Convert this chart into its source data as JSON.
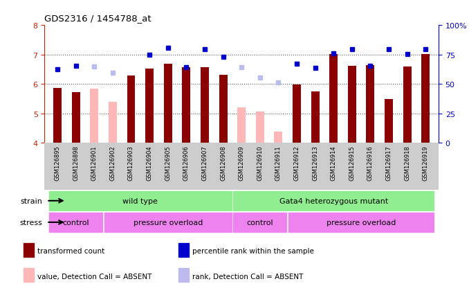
{
  "title": "GDS2316 / 1454788_at",
  "samples": [
    "GSM126895",
    "GSM126898",
    "GSM126901",
    "GSM126902",
    "GSM126903",
    "GSM126904",
    "GSM126905",
    "GSM126906",
    "GSM126907",
    "GSM126908",
    "GSM126909",
    "GSM126910",
    "GSM126911",
    "GSM126912",
    "GSM126913",
    "GSM126914",
    "GSM126915",
    "GSM126916",
    "GSM126917",
    "GSM126918",
    "GSM126919"
  ],
  "bar_values": [
    5.85,
    5.72,
    5.83,
    5.38,
    6.28,
    6.52,
    6.68,
    6.57,
    6.56,
    6.32,
    5.2,
    5.05,
    4.38,
    5.98,
    5.75,
    7.02,
    6.62,
    6.65,
    5.48,
    6.6,
    7.02
  ],
  "bar_absent": [
    false,
    false,
    true,
    true,
    false,
    false,
    false,
    false,
    false,
    false,
    true,
    true,
    true,
    false,
    false,
    false,
    false,
    false,
    false,
    false,
    false
  ],
  "rank_values": [
    6.5,
    6.62,
    6.6,
    6.38,
    null,
    7.0,
    7.22,
    6.58,
    7.18,
    6.92,
    6.58,
    6.22,
    6.05,
    6.68,
    6.55,
    7.05,
    7.18,
    6.62,
    7.18,
    7.02,
    7.18
  ],
  "rank_absent": [
    false,
    false,
    true,
    true,
    false,
    false,
    false,
    false,
    false,
    false,
    true,
    true,
    true,
    false,
    false,
    false,
    false,
    false,
    false,
    false,
    false
  ],
  "ylim_left": [
    4.0,
    8.0
  ],
  "ylim_right": [
    0,
    100
  ],
  "yticks_left": [
    4,
    5,
    6,
    7,
    8
  ],
  "yticks_right": [
    0,
    25,
    50,
    75,
    100
  ],
  "bar_color_present": "#8B0000",
  "bar_color_absent": "#FFB6B6",
  "rank_color_present": "#0000CD",
  "rank_color_absent": "#BBBBEE",
  "strain_regions": [
    {
      "start": 0,
      "end": 9,
      "label": "wild type",
      "color": "#90EE90"
    },
    {
      "start": 10,
      "end": 20,
      "label": "Gata4 heterozygous mutant",
      "color": "#90EE90"
    }
  ],
  "stress_regions": [
    {
      "start": 0,
      "end": 2,
      "label": "control",
      "color": "#EE82EE"
    },
    {
      "start": 3,
      "end": 9,
      "label": "pressure overload",
      "color": "#EE82EE"
    },
    {
      "start": 10,
      "end": 12,
      "label": "control",
      "color": "#EE82EE"
    },
    {
      "start": 13,
      "end": 20,
      "label": "pressure overload",
      "color": "#EE82EE"
    }
  ],
  "legend_items": [
    {
      "label": "transformed count",
      "color": "#8B0000"
    },
    {
      "label": "percentile rank within the sample",
      "color": "#0000CD"
    },
    {
      "label": "value, Detection Call = ABSENT",
      "color": "#FFB6B6"
    },
    {
      "label": "rank, Detection Call = ABSENT",
      "color": "#BBBBEE"
    }
  ],
  "background_color": "#ffffff",
  "xtick_area_color": "#CCCCCC",
  "bar_width": 0.45
}
